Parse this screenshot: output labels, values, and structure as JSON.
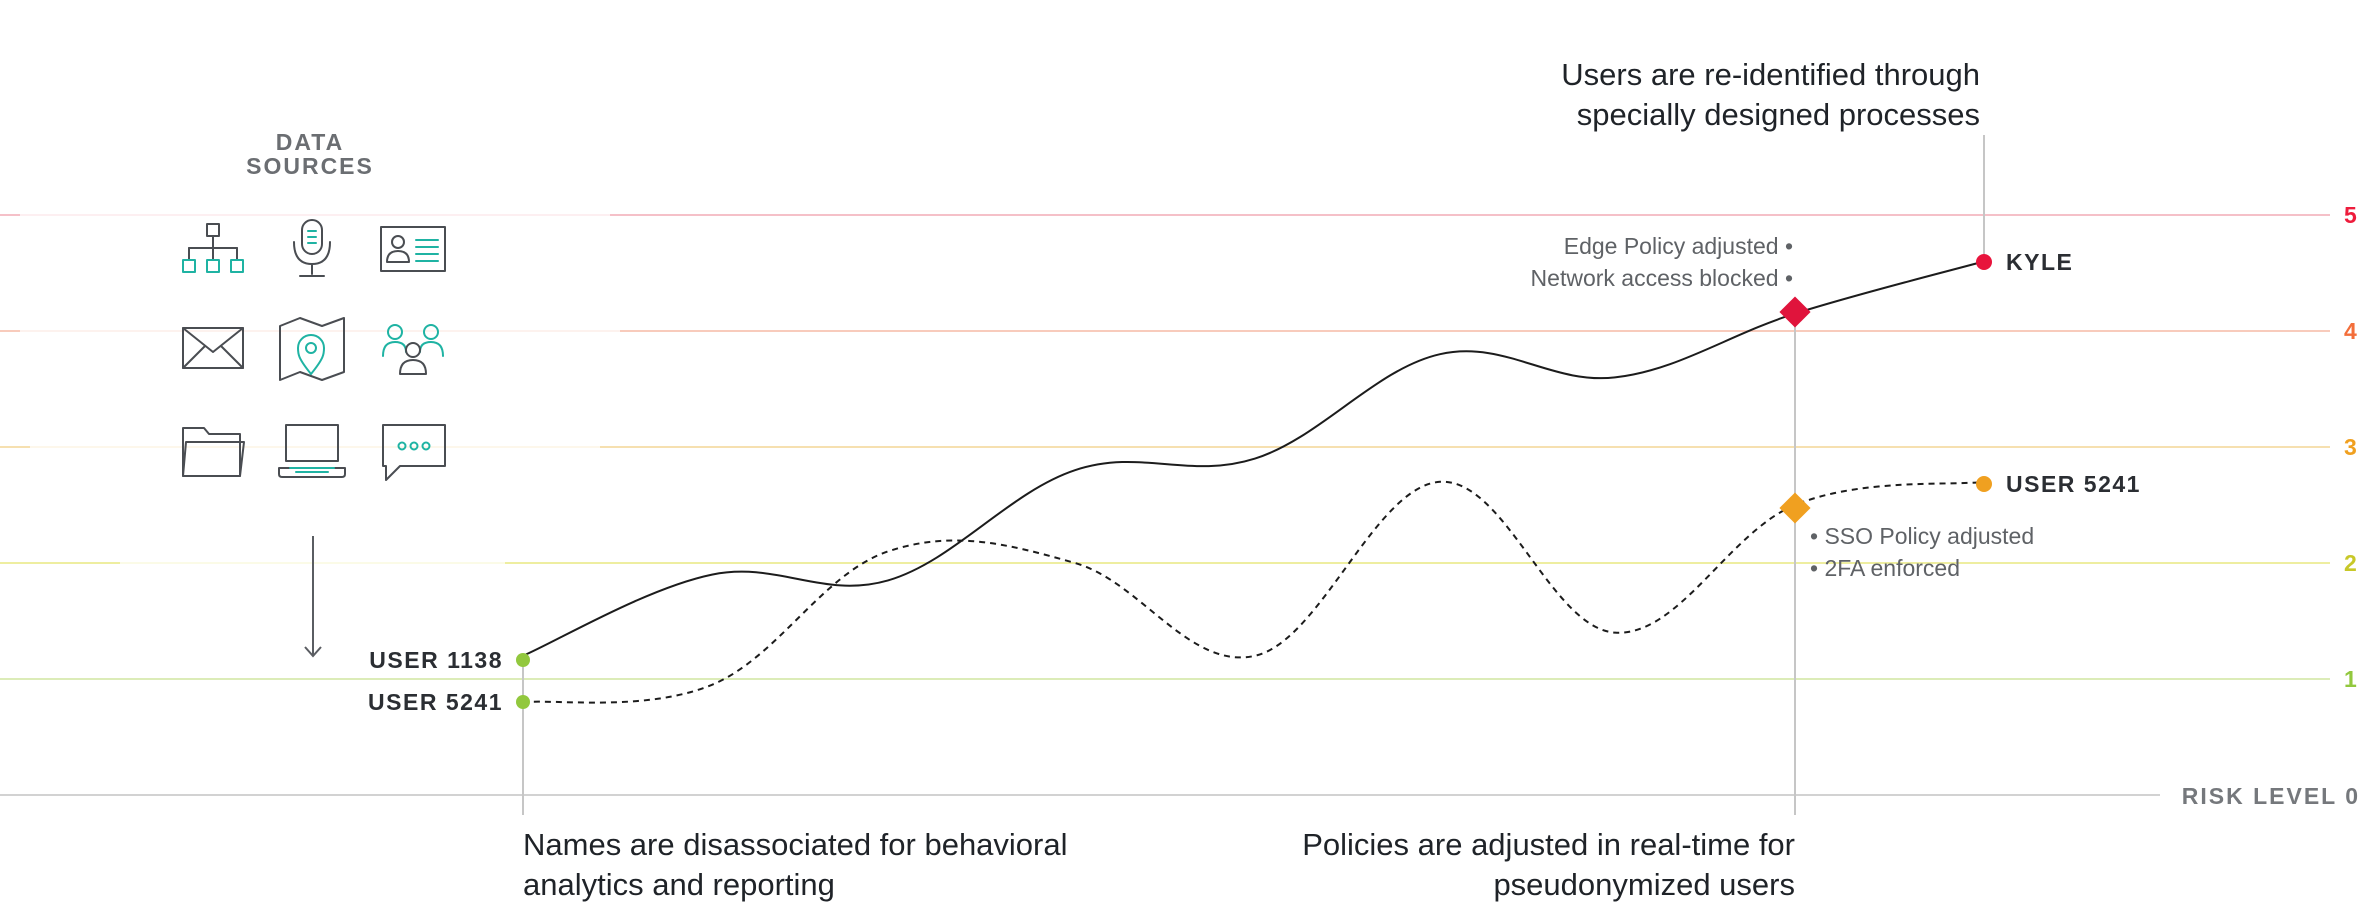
{
  "colors": {
    "level_5": "#ee1c3c",
    "level_4": "#f36e3a",
    "level_3": "#f0a020",
    "level_2": "#d0d030",
    "level_1": "#92c83e",
    "level_0": "#c8c8c8",
    "accent_teal": "#1fb3a3"
  },
  "data_sources": {
    "title_line1": "DATA",
    "title_line2": "SOURCES",
    "icons": [
      "org-chart-icon",
      "microphone-icon",
      "id-card-icon",
      "envelope-icon",
      "map-pin-icon",
      "user-group-icon",
      "folder-icon",
      "laptop-icon",
      "chat-bubble-icon"
    ]
  },
  "risk_axis": {
    "label": "RISK LEVEL",
    "levels": [
      "0",
      "1",
      "2",
      "3",
      "4",
      "5"
    ]
  },
  "users": {
    "start_top": "USER 1138",
    "start_bottom": "USER 5241",
    "end_top": "KYLE",
    "end_bottom": "USER 5241"
  },
  "annotations": {
    "top_line1": "Users are re-identified through",
    "top_line2": "specially designed processes",
    "bottom_left_line1": "Names are disassociated for behavioral",
    "bottom_left_line2": "analytics and reporting",
    "bottom_right_line1": "Policies are adjusted in real-time for",
    "bottom_right_line2": "pseudonymized users",
    "policy_bullets_top": [
      "Edge Policy adjusted",
      "Network access blocked"
    ],
    "policy_bullets_bottom": [
      "SSO Policy adjusted",
      "2FA enforced"
    ],
    "bullet_char": "•"
  },
  "chart_data": {
    "type": "line",
    "ylabel": "RISK LEVEL",
    "ylim": [
      0,
      5
    ],
    "series": [
      {
        "name": "USER 1138",
        "style": "solid",
        "color": "#1c1c1c",
        "values": [
          [
            0,
            1.2
          ],
          [
            1,
            1.9
          ],
          [
            2,
            1.85
          ],
          [
            3,
            2.8
          ],
          [
            4,
            2.9
          ],
          [
            5,
            3.8
          ],
          [
            6,
            3.6
          ],
          [
            7,
            4.15
          ],
          [
            8,
            4.6
          ]
        ]
      },
      {
        "name": "USER 5241",
        "style": "dashed",
        "color": "#1c1c1c",
        "values": [
          [
            0,
            0.8
          ],
          [
            1,
            0.95
          ],
          [
            2,
            2.1
          ],
          [
            3,
            2.0
          ],
          [
            4,
            1.2
          ],
          [
            5,
            2.7
          ],
          [
            6,
            1.4
          ],
          [
            7,
            2.5
          ],
          [
            8,
            2.7
          ]
        ]
      }
    ]
  }
}
